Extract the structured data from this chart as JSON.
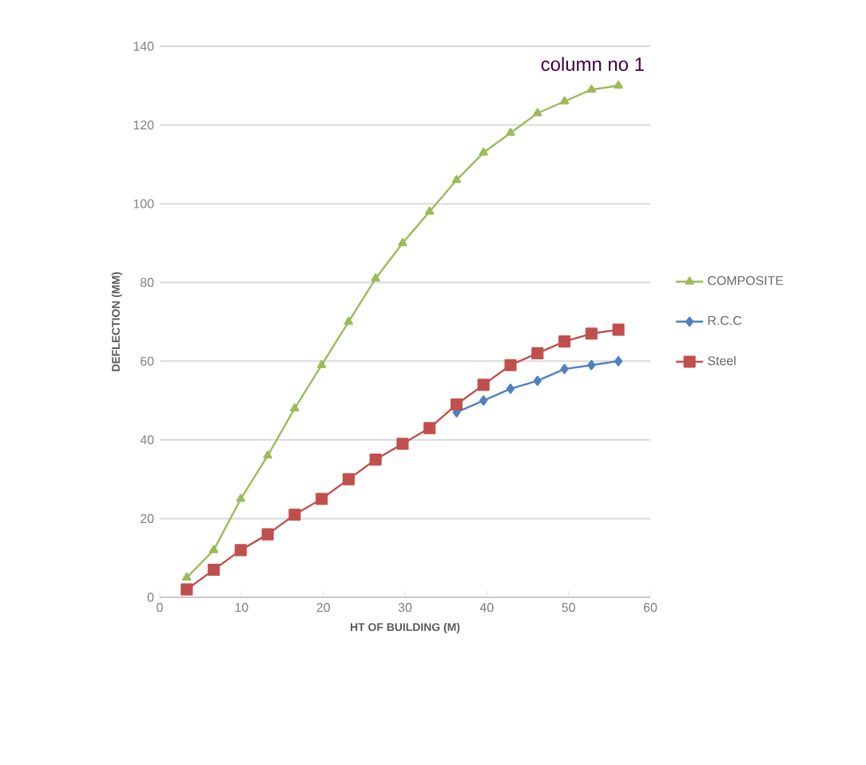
{
  "chart_data": {
    "type": "line",
    "title": "column no 1",
    "xlabel": "HT OF BUILDING (M)",
    "ylabel": "DEFLECTION (MM)",
    "x": [
      3.3,
      6.6,
      9.9,
      13.2,
      16.5,
      19.8,
      23.1,
      26.4,
      29.7,
      33.0,
      36.3,
      39.6,
      42.9,
      46.2,
      49.5,
      52.8,
      56.1
    ],
    "series": [
      {
        "name": "COMPOSITE",
        "color": "#9bbb59",
        "marker": "triangle",
        "values": [
          5,
          12,
          25,
          36,
          48,
          59,
          70,
          81,
          90,
          98,
          106,
          113,
          118,
          123,
          126,
          129,
          130
        ]
      },
      {
        "name": "R.C.C",
        "color": "#4f81bd",
        "marker": "diamond",
        "values": [
          null,
          null,
          null,
          null,
          null,
          null,
          null,
          null,
          null,
          null,
          47,
          50,
          53,
          55,
          58,
          59,
          60
        ]
      },
      {
        "name": "Steel",
        "color": "#c0504d",
        "marker": "square",
        "values": [
          2,
          7,
          12,
          16,
          21,
          25,
          30,
          35,
          39,
          43,
          49,
          54,
          59,
          62,
          65,
          67,
          68
        ]
      }
    ],
    "xlim": [
      0,
      60
    ],
    "xticks": [
      0,
      10,
      20,
      30,
      40,
      50,
      60
    ],
    "ylim": [
      0,
      140
    ],
    "yticks": [
      0,
      20,
      40,
      60,
      80,
      100,
      120,
      140
    ],
    "grid": "y",
    "legend": "right"
  }
}
